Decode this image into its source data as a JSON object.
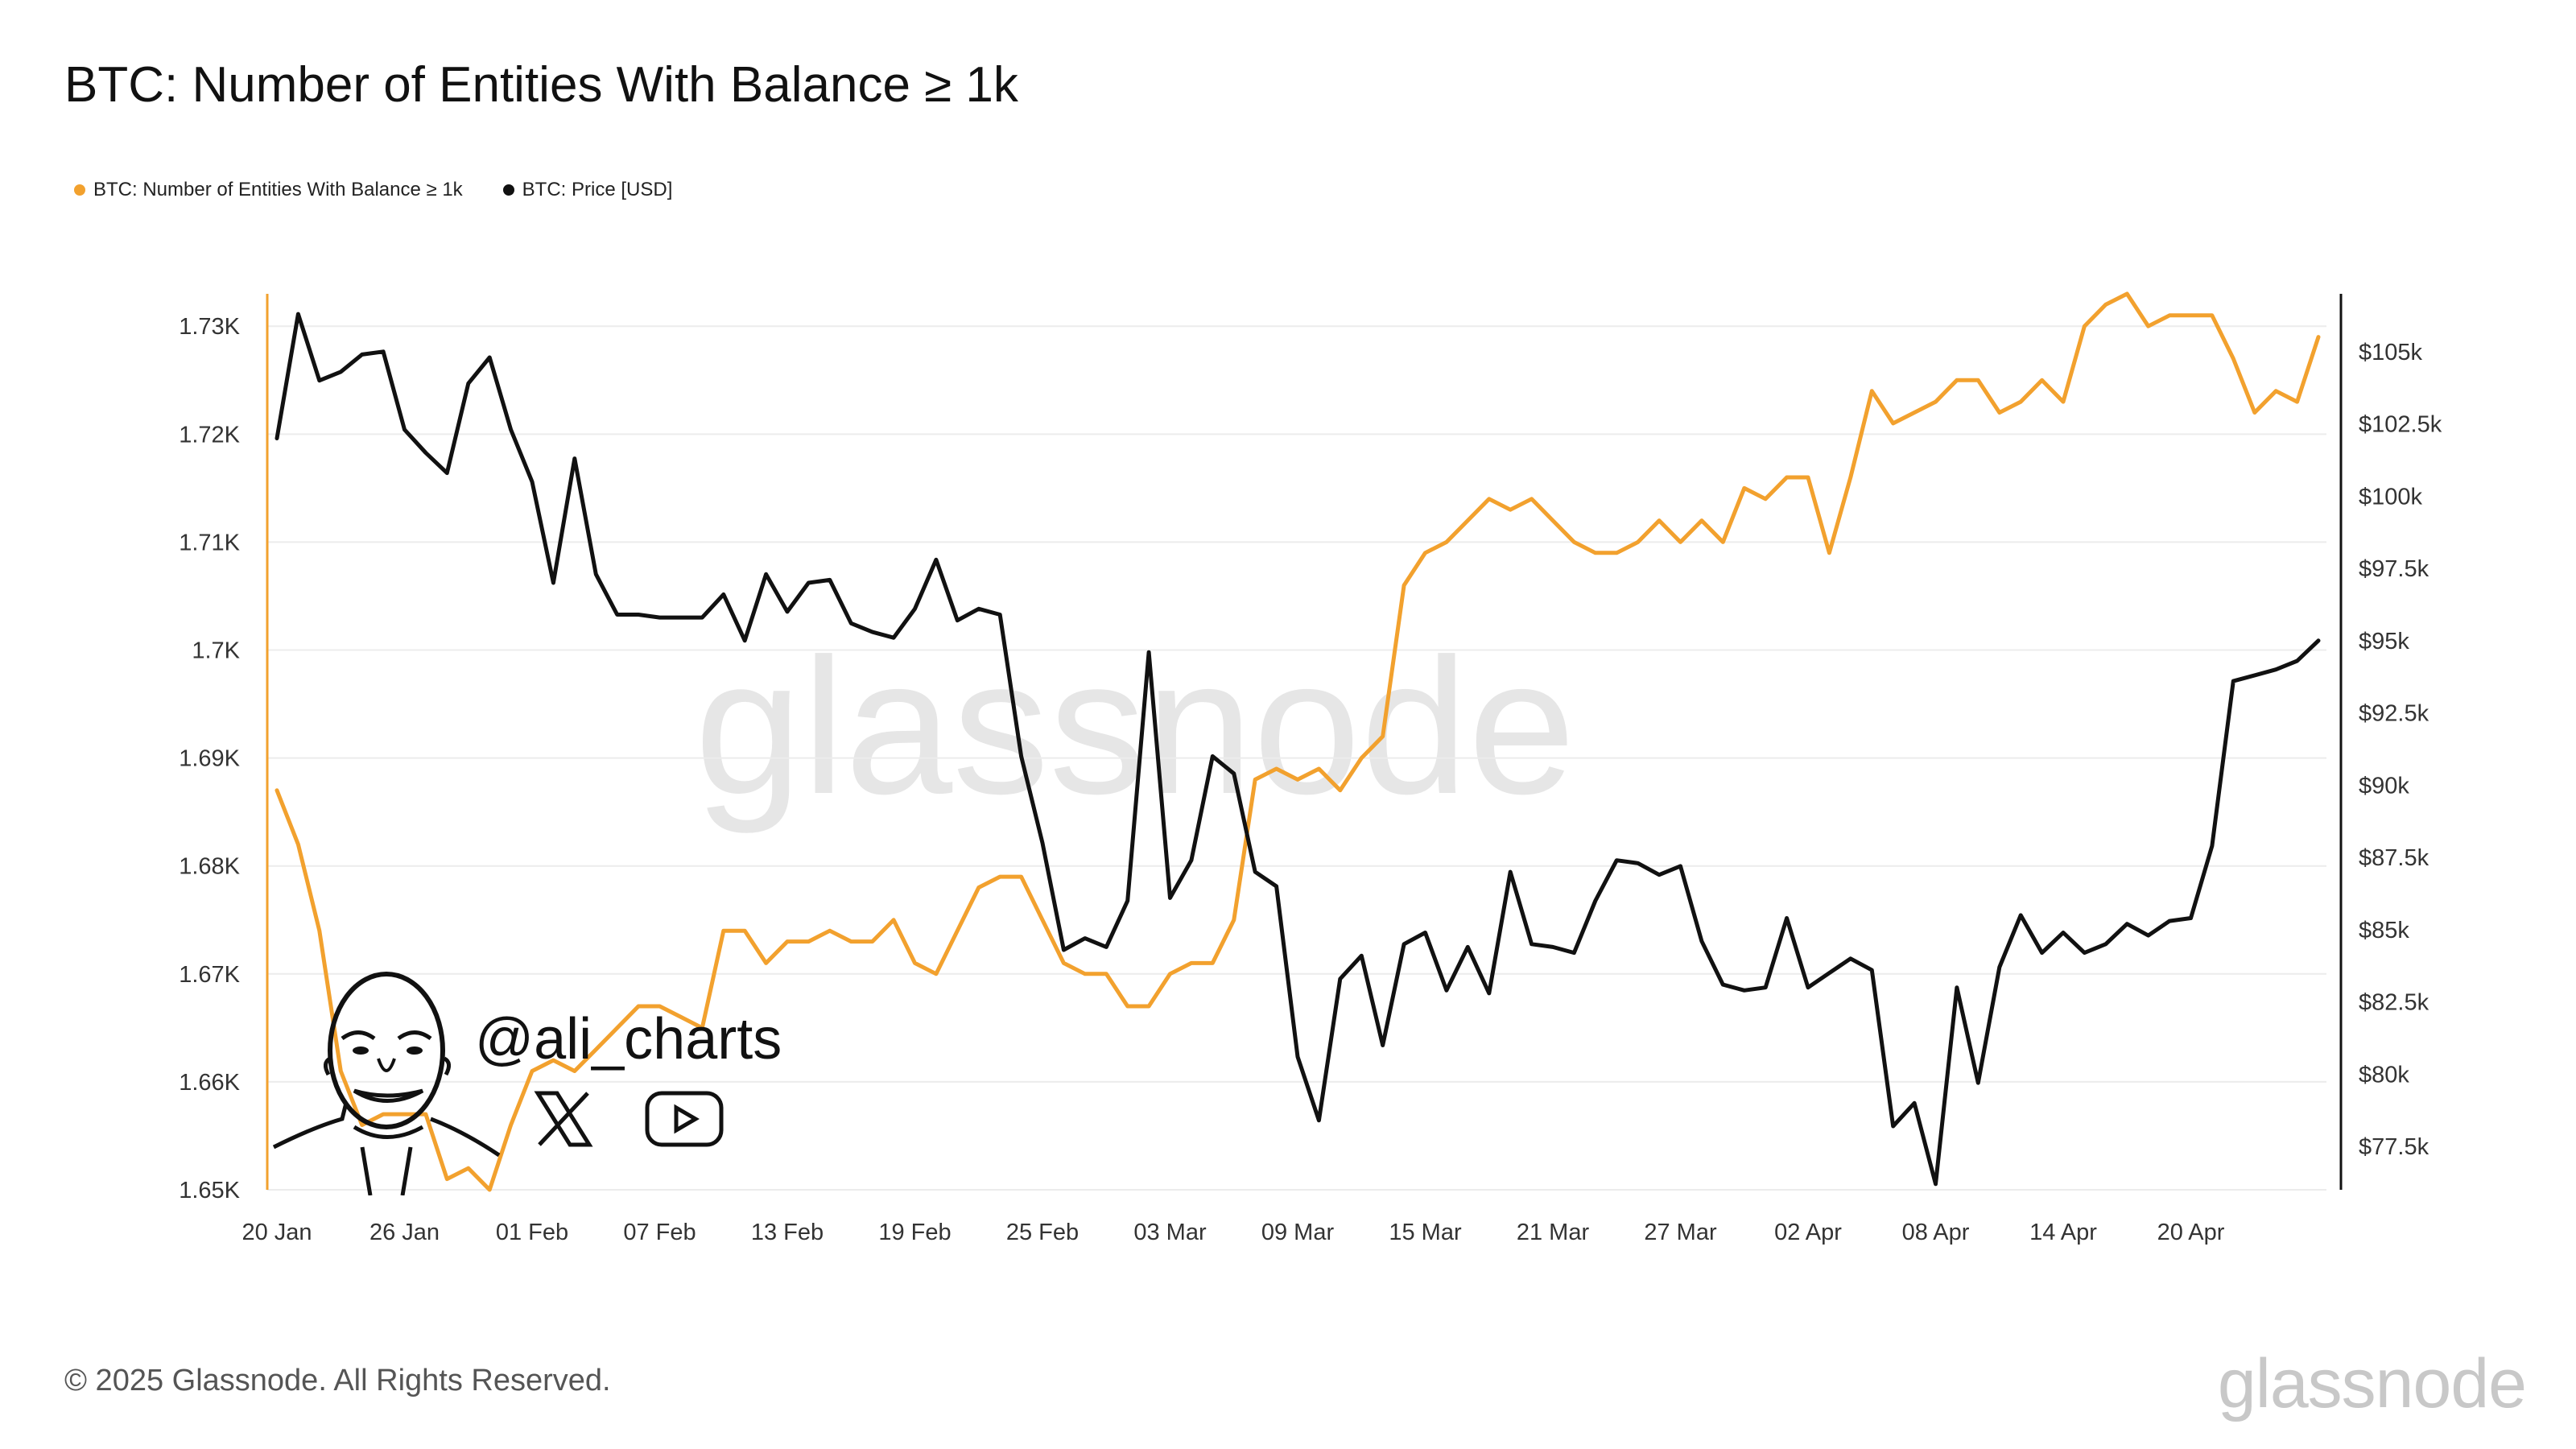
{
  "page": {
    "title": "BTC: Number of Entities With Balance ≥ 1k",
    "footer": "© 2025 Glassnode. All Rights Reserved.",
    "footer_logo": "glassnode",
    "watermark": "glassnode",
    "handle": "@ali_charts",
    "icons": {
      "x": "x-logo-icon",
      "youtube": "youtube-play-icon",
      "avatar": "caricature-avatar"
    }
  },
  "legend": [
    {
      "label": "BTC: Number of Entities With Balance ≥ 1k",
      "color": "#f2a12e"
    },
    {
      "label": "BTC: Price [USD]",
      "color": "#111111"
    }
  ],
  "chart_data": {
    "type": "line",
    "x": [
      "20 Jan",
      "21 Jan",
      "22 Jan",
      "23 Jan",
      "24 Jan",
      "25 Jan",
      "26 Jan",
      "27 Jan",
      "28 Jan",
      "29 Jan",
      "30 Jan",
      "31 Jan",
      "01 Feb",
      "02 Feb",
      "03 Feb",
      "04 Feb",
      "05 Feb",
      "06 Feb",
      "07 Feb",
      "08 Feb",
      "09 Feb",
      "10 Feb",
      "11 Feb",
      "12 Feb",
      "13 Feb",
      "14 Feb",
      "15 Feb",
      "16 Feb",
      "17 Feb",
      "18 Feb",
      "19 Feb",
      "20 Feb",
      "21 Feb",
      "22 Feb",
      "23 Feb",
      "24 Feb",
      "25 Feb",
      "26 Feb",
      "27 Feb",
      "28 Feb",
      "01 Mar",
      "02 Mar",
      "03 Mar",
      "04 Mar",
      "05 Mar",
      "06 Mar",
      "07 Mar",
      "08 Mar",
      "09 Mar",
      "10 Mar",
      "11 Mar",
      "12 Mar",
      "13 Mar",
      "14 Mar",
      "15 Mar",
      "16 Mar",
      "17 Mar",
      "18 Mar",
      "19 Mar",
      "20 Mar",
      "21 Mar",
      "22 Mar",
      "23 Mar",
      "24 Mar",
      "25 Mar",
      "26 Mar",
      "27 Mar",
      "28 Mar",
      "29 Mar",
      "30 Mar",
      "31 Mar",
      "01 Apr",
      "02 Apr",
      "03 Apr",
      "04 Apr",
      "05 Apr",
      "06 Apr",
      "07 Apr",
      "08 Apr",
      "09 Apr",
      "10 Apr",
      "11 Apr",
      "12 Apr",
      "13 Apr",
      "14 Apr",
      "15 Apr",
      "16 Apr",
      "17 Apr",
      "18 Apr",
      "19 Apr",
      "20 Apr",
      "21 Apr",
      "22 Apr",
      "23 Apr",
      "24 Apr",
      "25 Apr",
      "26 Apr"
    ],
    "x_ticks": [
      "20 Jan",
      "26 Jan",
      "01 Feb",
      "07 Feb",
      "13 Feb",
      "19 Feb",
      "25 Feb",
      "03 Mar",
      "09 Mar",
      "15 Mar",
      "21 Mar",
      "27 Mar",
      "02 Apr",
      "08 Apr",
      "14 Apr",
      "20 Apr"
    ],
    "y_left": {
      "ticks": [
        "1.65K",
        "1.66K",
        "1.67K",
        "1.68K",
        "1.69K",
        "1.7K",
        "1.71K",
        "1.72K",
        "1.73K"
      ],
      "range": [
        1650,
        1733
      ]
    },
    "y_right": {
      "ticks": [
        "$77.5k",
        "$80k",
        "$82.5k",
        "$85k",
        "$87.5k",
        "$90k",
        "$92.5k",
        "$95k",
        "$97.5k",
        "$100k",
        "$102.5k",
        "$105k"
      ],
      "range": [
        76000,
        107000
      ]
    },
    "series": [
      {
        "name": "BTC: Number of Entities With Balance ≥ 1k",
        "axis": "left",
        "color": "#f2a12e",
        "values": [
          1687,
          1682,
          1674,
          1661,
          1656,
          1657,
          1657,
          1657,
          1651,
          1652,
          1650,
          1656,
          1661,
          1662,
          1661,
          1663,
          1665,
          1667,
          1667,
          1666,
          1665,
          1674,
          1674,
          1671,
          1673,
          1673,
          1674,
          1673,
          1673,
          1675,
          1671,
          1670,
          1674,
          1678,
          1679,
          1679,
          1675,
          1671,
          1670,
          1670,
          1667,
          1667,
          1670,
          1671,
          1671,
          1675,
          1688,
          1689,
          1688,
          1689,
          1687,
          1690,
          1692,
          1706,
          1709,
          1710,
          1712,
          1714,
          1713,
          1714,
          1712,
          1710,
          1709,
          1709,
          1710,
          1712,
          1710,
          1712,
          1710,
          1715,
          1714,
          1716,
          1716,
          1709,
          1716,
          1724,
          1721,
          1722,
          1723,
          1725,
          1725,
          1722,
          1723,
          1725,
          1723,
          1730,
          1732,
          1733,
          1730,
          1731,
          1731,
          1731,
          1727,
          1722,
          1724,
          1723,
          1729
        ]
      },
      {
        "name": "BTC: Price [USD]",
        "axis": "right",
        "color": "#111111",
        "values": [
          102000,
          106300,
          104000,
          104300,
          104900,
          105000,
          102300,
          101500,
          100800,
          103900,
          104800,
          102300,
          100500,
          97000,
          101300,
          97300,
          95900,
          95900,
          95800,
          95800,
          95800,
          96600,
          95000,
          97300,
          96000,
          97000,
          97100,
          95600,
          95300,
          95100,
          96100,
          97800,
          95700,
          96100,
          95900,
          91000,
          88000,
          84300,
          84700,
          84400,
          86000,
          94600,
          86100,
          87400,
          91000,
          90400,
          87000,
          86500,
          80600,
          78400,
          83300,
          84100,
          81000,
          84500,
          84900,
          82900,
          84400,
          82800,
          87000,
          84500,
          84400,
          84200,
          86000,
          87400,
          87300,
          86900,
          87200,
          84600,
          83100,
          82900,
          83000,
          85400,
          83000,
          83500,
          84000,
          83600,
          78200,
          79000,
          76200,
          83000,
          79700,
          83700,
          85500,
          84200,
          84900,
          84200,
          84500,
          85200,
          84800,
          85300,
          85400,
          87900,
          93600,
          93800,
          94000,
          94300,
          95000
        ]
      }
    ]
  }
}
